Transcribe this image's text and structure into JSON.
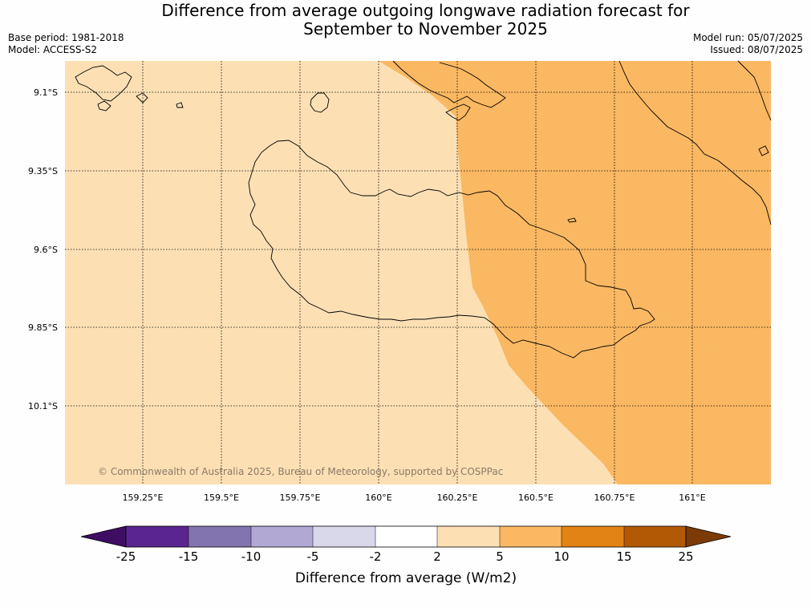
{
  "title": {
    "line1": "Difference from average outgoing longwave radiation forecast for",
    "line2": "September to November 2025"
  },
  "meta": {
    "base_period": "Base period: 1981-2018",
    "model": "Model: ACCESS-S2",
    "model_run": "Model run: 05/07/2025",
    "issued": "Issued: 08/07/2025"
  },
  "map": {
    "lat_labels": [
      "9.1°S",
      "9.35°S",
      "9.6°S",
      "9.85°S",
      "10.1°S"
    ],
    "lon_labels": [
      "159.25°E",
      "159.5°E",
      "159.75°E",
      "160°E",
      "160.25°E",
      "160.5°E",
      "160.75°E",
      "161°E"
    ],
    "copyright": "© Commonwealth of Australia 2025, Bureau of Meteorology, supported by COSPPac",
    "fill_colors": {
      "light": "#fce0b4",
      "medium": "#fab862"
    }
  },
  "colorbar": {
    "ticks": [
      "-25",
      "-15",
      "-10",
      "-5",
      "-2",
      "2",
      "5",
      "10",
      "15",
      "25"
    ],
    "colors": [
      "#3f0d63",
      "#5a2590",
      "#8274ae",
      "#b1a9d3",
      "#d8d8ea",
      "#ffffff",
      "#fce0b4",
      "#fab862",
      "#e28316",
      "#b25906",
      "#7b3a06"
    ],
    "label": "Difference from average (W/m2)"
  }
}
